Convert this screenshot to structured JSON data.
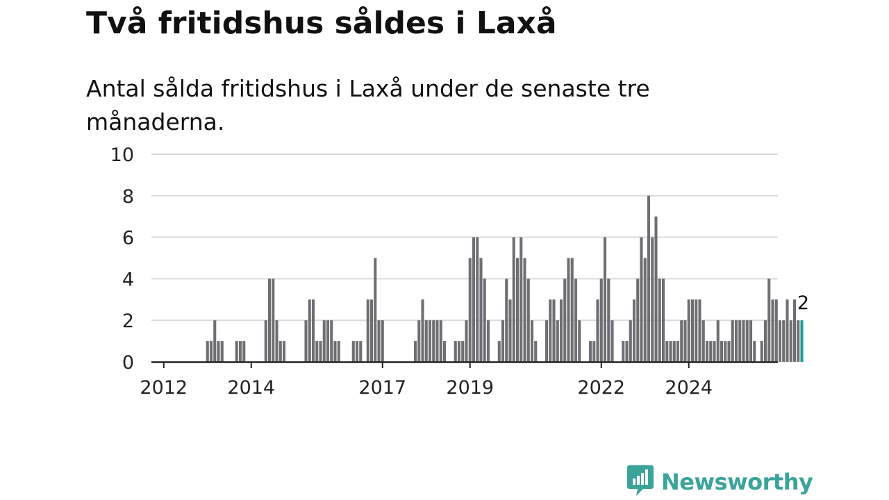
{
  "title": "Två fritidshus såldes i Laxå",
  "subtitle": "Antal sålda fritidshus i Laxå under de senaste tre månaderna.",
  "brand": {
    "name": "Newsworthy",
    "color": "#3aa39a"
  },
  "colors": {
    "bar": "#6f6e73",
    "highlight": "#1f9d96",
    "grid": "#d9d9d9",
    "axis": "#222222"
  },
  "chart_data": {
    "type": "bar",
    "title": "Två fritidshus såldes i Laxå",
    "subtitle": "Antal sålda fritidshus i Laxå under de senaste tre månaderna.",
    "xlabel": "",
    "ylabel": "",
    "ylim": [
      0,
      10
    ],
    "yticks": [
      0,
      2,
      4,
      6,
      8,
      10
    ],
    "xticks": [
      2012,
      2014,
      2017,
      2019,
      2022,
      2024
    ],
    "x_start": "2011-12",
    "series_unit": "month",
    "grid": true,
    "values": [
      0,
      0,
      0,
      0,
      0,
      0,
      0,
      0,
      0,
      0,
      0,
      0,
      0,
      1,
      1,
      2,
      1,
      1,
      0,
      0,
      0,
      1,
      1,
      1,
      0,
      0,
      0,
      0,
      0,
      2,
      4,
      4,
      2,
      1,
      1,
      0,
      0,
      0,
      0,
      0,
      2,
      3,
      3,
      1,
      1,
      2,
      2,
      2,
      1,
      1,
      0,
      0,
      0,
      1,
      1,
      1,
      0,
      3,
      3,
      5,
      2,
      2,
      0,
      0,
      0,
      0,
      0,
      0,
      0,
      0,
      1,
      2,
      3,
      2,
      2,
      2,
      2,
      2,
      1,
      0,
      0,
      1,
      1,
      1,
      2,
      5,
      6,
      6,
      5,
      4,
      2,
      0,
      0,
      1,
      2,
      4,
      3,
      6,
      5,
      6,
      5,
      4,
      2,
      1,
      0,
      0,
      2,
      3,
      3,
      2,
      3,
      4,
      5,
      5,
      4,
      2,
      0,
      0,
      1,
      1,
      3,
      4,
      6,
      4,
      2,
      0,
      0,
      1,
      1,
      2,
      3,
      4,
      6,
      5,
      8,
      6,
      7,
      4,
      4,
      1,
      1,
      1,
      1,
      2,
      2,
      3,
      3,
      3,
      3,
      2,
      1,
      1,
      1,
      2,
      1,
      1,
      1,
      2,
      2,
      2,
      2,
      2,
      2,
      1,
      0,
      1,
      2,
      4,
      3,
      3,
      2,
      2,
      3,
      2,
      3,
      2,
      2
    ],
    "highlight": {
      "index": -1,
      "label": "2"
    }
  }
}
